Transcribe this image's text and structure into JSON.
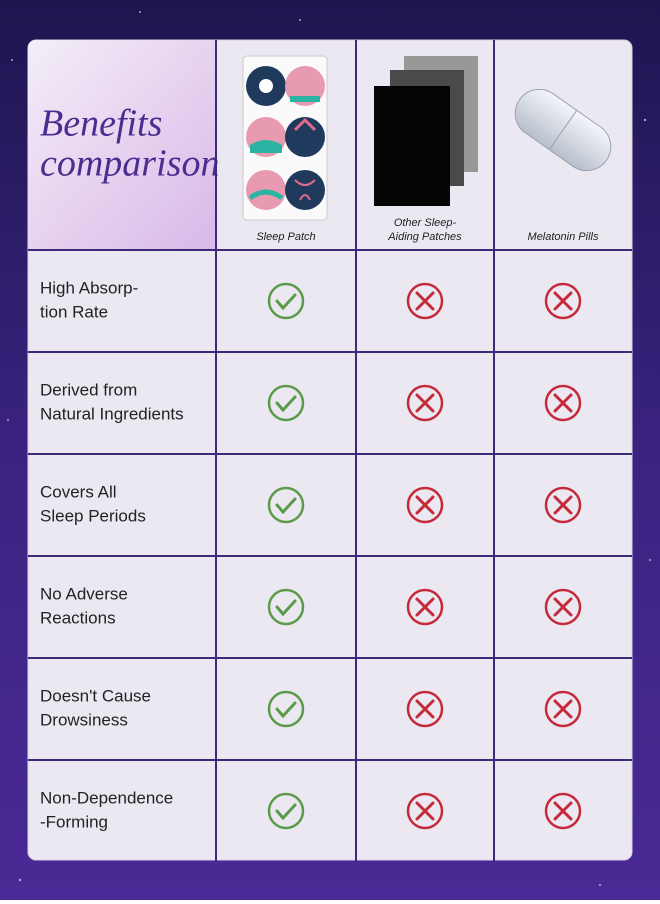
{
  "header": {
    "title_lines": [
      "Benefits",
      "comparison"
    ]
  },
  "columns": [
    [
      "Sleep Patch"
    ],
    [
      "Other Sleep-",
      "Aiding Patches"
    ],
    [
      "Melatonin Pills"
    ]
  ],
  "rows": [
    {
      "label_lines": [
        "High Absorp-",
        "tion Rate"
      ],
      "cells": [
        true,
        false,
        false
      ]
    },
    {
      "label_lines": [
        "Derived from",
        "Natural Ingredients"
      ],
      "cells": [
        true,
        false,
        false
      ]
    },
    {
      "label_lines": [
        "Covers All",
        "Sleep Periods"
      ],
      "cells": [
        true,
        false,
        false
      ]
    },
    {
      "label_lines": [
        "No Adverse",
        "Reactions"
      ],
      "cells": [
        true,
        false,
        false
      ]
    },
    {
      "label_lines": [
        "Doesn't Cause",
        "Drowsiness"
      ],
      "cells": [
        true,
        false,
        false
      ]
    },
    {
      "label_lines": [
        "Non-Dependence",
        "-Forming"
      ],
      "cells": [
        true,
        false,
        false
      ]
    }
  ]
}
